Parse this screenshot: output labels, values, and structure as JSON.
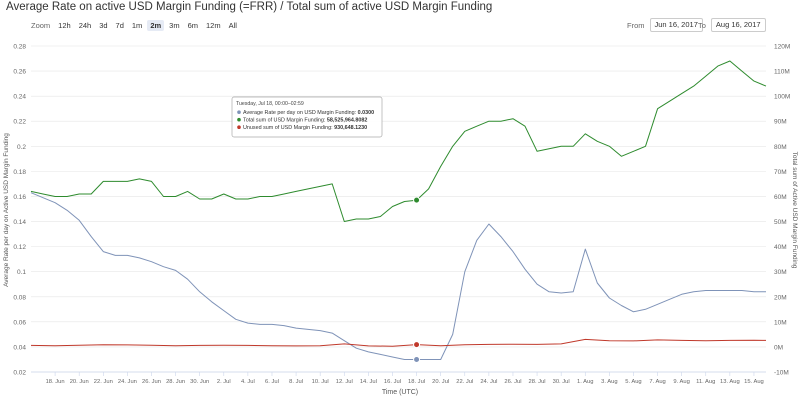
{
  "title": "Average Rate on active USD Margin Funding (=FRR) / Total sum of active USD Margin Funding",
  "zoom": {
    "label": "Zoom",
    "buttons": [
      "12h",
      "24h",
      "3d",
      "7d",
      "1m",
      "2m",
      "3m",
      "6m",
      "12m",
      "All"
    ],
    "active": "2m"
  },
  "range": {
    "from_label": "From",
    "from_value": "Jun 16, 2017",
    "to_label": "To",
    "to_value": "Aug 16, 2017"
  },
  "tooltip": {
    "header": "Tuesday, Jul 18, 00:00–02:59",
    "rows": [
      {
        "label": "Average Rate per day on USD Margin Funding: ",
        "value": "0.0300",
        "color": "#7f93b8"
      },
      {
        "label": "Total sum of USD Margin Funding: ",
        "value": "58,525,964.8082",
        "color": "#2e8b2e"
      },
      {
        "label": "Unused sum of USD Margin Funding: ",
        "value": "930,648.1230",
        "color": "#c0392b"
      }
    ]
  },
  "chart_data": {
    "type": "line",
    "title": "Average Rate on active USD Margin Funding (=FRR) / Total sum of active USD Margin Funding",
    "xlabel": "Time (UTC)",
    "ylabel_left": "Average Rate per day on Active USD Margin Funding",
    "ylabel_right": "Total sum of Active USD Margin Funding",
    "x_ticks": [
      "18. Jun",
      "20. Jun",
      "22. Jun",
      "24. Jun",
      "26. Jun",
      "28. Jun",
      "30. Jun",
      "2. Jul",
      "4. Jul",
      "6. Jul",
      "8. Jul",
      "10. Jul",
      "12. Jul",
      "14. Jul",
      "16. Jul",
      "18. Jul",
      "20. Jul",
      "22. Jul",
      "24. Jul",
      "26. Jul",
      "28. Jul",
      "30. Jul",
      "1. Aug",
      "3. Aug",
      "5. Aug",
      "7. Aug",
      "9. Aug",
      "11. Aug",
      "13. Aug",
      "15. Aug"
    ],
    "y_left_ticks": [
      "0.02",
      "0.04",
      "0.06",
      "0.08",
      "0.1",
      "0.12",
      "0.14",
      "0.16",
      "0.18",
      "0.2",
      "0.22",
      "0.24",
      "0.26",
      "0.28"
    ],
    "y_right_ticks": [
      "-10M",
      "0M",
      "10M",
      "20M",
      "30M",
      "40M",
      "50M",
      "60M",
      "70M",
      "80M",
      "90M",
      "100M",
      "110M",
      "120M"
    ],
    "y_left_range": [
      0.02,
      0.28
    ],
    "y_right_range": [
      -10000000,
      120000000
    ],
    "x_range_days_from_jun16": [
      0,
      61
    ],
    "series": [
      {
        "name": "Average Rate per day on USD Margin Funding",
        "axis": "left",
        "color": "#7f93b8",
        "x": [
          "Jun 16",
          "Jun 17",
          "Jun 18",
          "Jun 19",
          "Jun 20",
          "Jun 21",
          "Jun 22",
          "Jun 23",
          "Jun 24",
          "Jun 25",
          "Jun 26",
          "Jun 27",
          "Jun 28",
          "Jun 29",
          "Jun 30",
          "Jul 1",
          "Jul 2",
          "Jul 3",
          "Jul 4",
          "Jul 5",
          "Jul 6",
          "Jul 7",
          "Jul 8",
          "Jul 9",
          "Jul 10",
          "Jul 11",
          "Jul 12",
          "Jul 13",
          "Jul 14",
          "Jul 15",
          "Jul 16",
          "Jul 17",
          "Jul 18",
          "Jul 19",
          "Jul 20",
          "Jul 21",
          "Jul 22",
          "Jul 23",
          "Jul 24",
          "Jul 25",
          "Jul 26",
          "Jul 27",
          "Jul 28",
          "Jul 29",
          "Jul 30",
          "Jul 31",
          "Aug 1",
          "Aug 2",
          "Aug 3",
          "Aug 4",
          "Aug 5",
          "Aug 6",
          "Aug 7",
          "Aug 8",
          "Aug 9",
          "Aug 10",
          "Aug 11",
          "Aug 12",
          "Aug 13",
          "Aug 14",
          "Aug 15",
          "Aug 16"
        ],
        "y": [
          0.163,
          0.159,
          0.155,
          0.149,
          0.141,
          0.128,
          0.116,
          0.113,
          0.113,
          0.111,
          0.108,
          0.104,
          0.101,
          0.094,
          0.084,
          0.076,
          0.069,
          0.062,
          0.059,
          0.058,
          0.058,
          0.057,
          0.055,
          0.054,
          0.053,
          0.051,
          0.045,
          0.039,
          0.036,
          0.034,
          0.032,
          0.03,
          0.03,
          0.03,
          0.03,
          0.05,
          0.1,
          0.125,
          0.138,
          0.128,
          0.116,
          0.102,
          0.09,
          0.084,
          0.083,
          0.084,
          0.118,
          0.091,
          0.079,
          0.073,
          0.068,
          0.07,
          0.074,
          0.078,
          0.082,
          0.084,
          0.085,
          0.085,
          0.085,
          0.085,
          0.084,
          0.084
        ]
      },
      {
        "name": "Total sum of USD Margin Funding",
        "axis": "right",
        "color": "#2e8b2e",
        "x": [
          "Jun 16",
          "Jun 17",
          "Jun 18",
          "Jun 19",
          "Jun 20",
          "Jun 21",
          "Jun 22",
          "Jun 23",
          "Jun 24",
          "Jun 25",
          "Jun 26",
          "Jun 27",
          "Jun 28",
          "Jun 29",
          "Jun 30",
          "Jul 1",
          "Jul 2",
          "Jul 3",
          "Jul 4",
          "Jul 5",
          "Jul 6",
          "Jul 7",
          "Jul 8",
          "Jul 9",
          "Jul 10",
          "Jul 11",
          "Jul 12",
          "Jul 13",
          "Jul 14",
          "Jul 15",
          "Jul 16",
          "Jul 17",
          "Jul 18",
          "Jul 19",
          "Jul 20",
          "Jul 21",
          "Jul 22",
          "Jul 23",
          "Jul 24",
          "Jul 25",
          "Jul 26",
          "Jul 27",
          "Jul 28",
          "Jul 29",
          "Jul 30",
          "Jul 31",
          "Aug 1",
          "Aug 2",
          "Aug 3",
          "Aug 4",
          "Aug 5",
          "Aug 6",
          "Aug 7",
          "Aug 8",
          "Aug 9",
          "Aug 10",
          "Aug 11",
          "Aug 12",
          "Aug 13",
          "Aug 14",
          "Aug 15",
          "Aug 16"
        ],
        "y": [
          62000000,
          61000000,
          60000000,
          60000000,
          61000000,
          61000000,
          66000000,
          66000000,
          66000000,
          67000000,
          66000000,
          60000000,
          60000000,
          62000000,
          59000000,
          59000000,
          61000000,
          59000000,
          59000000,
          60000000,
          60000000,
          61000000,
          62000000,
          63000000,
          64000000,
          65000000,
          50000000,
          51000000,
          51000000,
          52000000,
          56000000,
          58000000,
          58525964,
          63000000,
          72000000,
          80000000,
          86000000,
          88000000,
          90000000,
          90000000,
          91000000,
          88000000,
          78000000,
          79000000,
          80000000,
          80000000,
          85000000,
          82000000,
          80000000,
          76000000,
          78000000,
          80000000,
          95000000,
          98000000,
          101000000,
          104000000,
          108000000,
          112000000,
          114000000,
          110000000,
          106000000,
          104000000
        ]
      },
      {
        "name": "Unused sum of USD Margin Funding",
        "axis": "right",
        "color": "#c0392b",
        "x": [
          "Jun 16",
          "Jun 18",
          "Jun 20",
          "Jun 22",
          "Jun 24",
          "Jun 26",
          "Jun 28",
          "Jun 30",
          "Jul 2",
          "Jul 4",
          "Jul 6",
          "Jul 8",
          "Jul 10",
          "Jul 12",
          "Jul 14",
          "Jul 16",
          "Jul 18",
          "Jul 20",
          "Jul 22",
          "Jul 24",
          "Jul 26",
          "Jul 28",
          "Jul 30",
          "Aug 1",
          "Aug 3",
          "Aug 5",
          "Aug 7",
          "Aug 9",
          "Aug 11",
          "Aug 13",
          "Aug 15",
          "Aug 16"
        ],
        "y": [
          600000,
          500000,
          700000,
          900000,
          800000,
          700000,
          500000,
          600000,
          700000,
          600000,
          500000,
          400000,
          500000,
          1200000,
          400000,
          300000,
          930648,
          500000,
          900000,
          1000000,
          1100000,
          1000000,
          1200000,
          3000000,
          2500000,
          2400000,
          2800000,
          2600000,
          2500000,
          2600000,
          2700000,
          2600000
        ]
      }
    ],
    "grid": true,
    "legend": "none"
  }
}
